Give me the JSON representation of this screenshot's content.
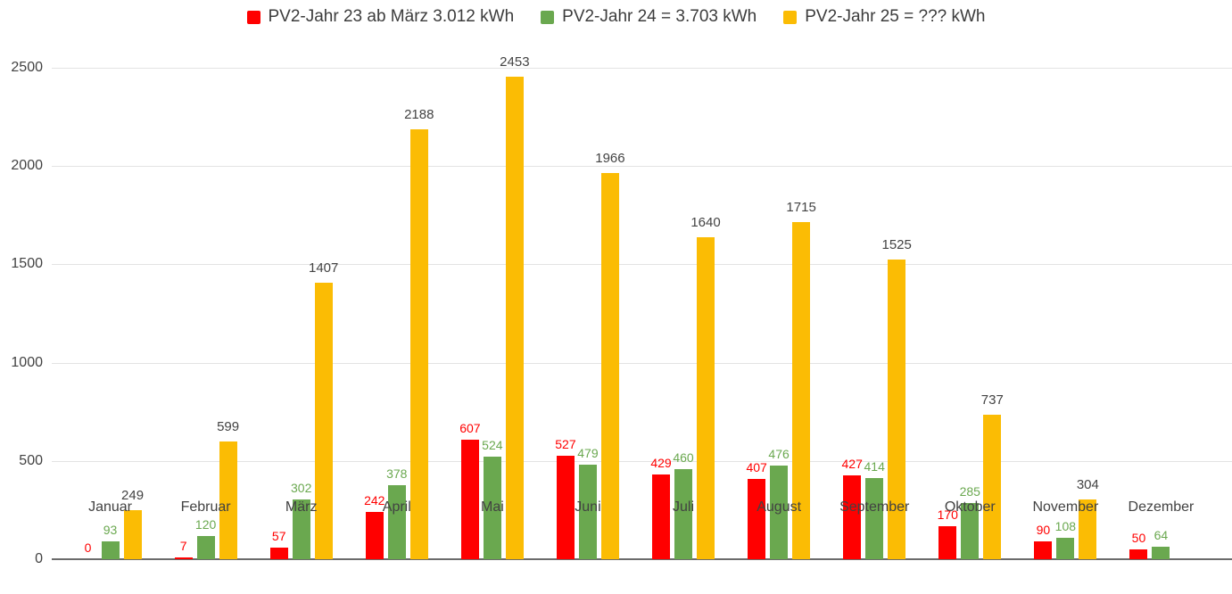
{
  "chart_data": {
    "type": "bar",
    "title": "",
    "xlabel": "",
    "ylabel": "",
    "categories": [
      "Januar",
      "Februar",
      "März",
      "April",
      "Mai",
      "Juni",
      "Juli",
      "August",
      "September",
      "Oktober",
      "November",
      "Dezember"
    ],
    "series": [
      {
        "name": "PV2-Jahr 23 ab März 3.012 kWh",
        "color": "#ff0000",
        "label_color": "#ff0000",
        "values": [
          0,
          7,
          57,
          242,
          607,
          527,
          429,
          407,
          427,
          170,
          90,
          50
        ]
      },
      {
        "name": "PV2-Jahr 24 = 3.703 kWh",
        "color": "#6aa84f",
        "label_color": "#6aa84f",
        "values": [
          93,
          120,
          302,
          378,
          524,
          479,
          460,
          476,
          414,
          285,
          108,
          64
        ]
      },
      {
        "name": "PV2-Jahr 25 = ??? kWh",
        "color": "#fbbc04",
        "label_color": "#434343",
        "values": [
          249,
          599,
          1407,
          2188,
          2453,
          1966,
          1640,
          1715,
          1525,
          737,
          304,
          null
        ]
      }
    ],
    "ylim": [
      0,
      2500
    ],
    "yticks": [
      0,
      500,
      1000,
      1500,
      2000,
      2500
    ],
    "grid": true,
    "legend_position": "top",
    "units": "kWh"
  },
  "colors": {
    "grid": "#e3e3e3",
    "baseline": "#6b6b6b",
    "axis_text": "#424242",
    "legend_text": "#3c3c3c",
    "background": "#ffffff"
  }
}
